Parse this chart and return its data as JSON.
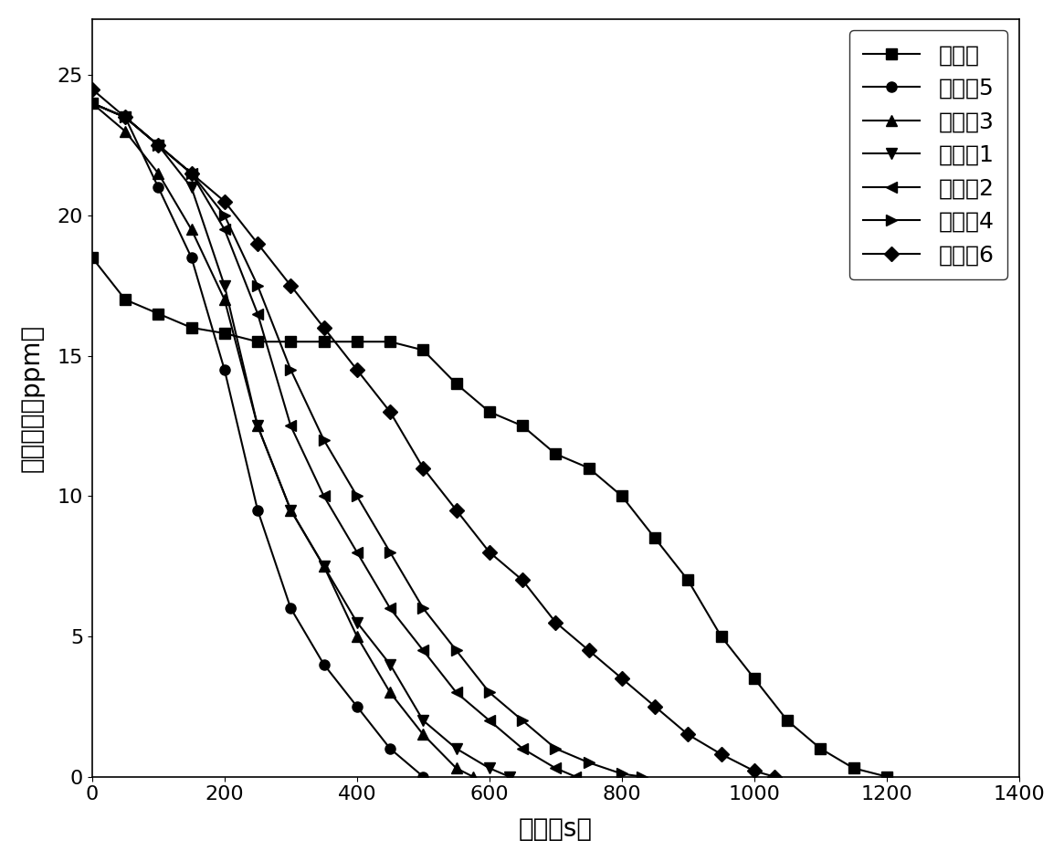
{
  "series": [
    {
      "label": "对比例",
      "marker": "s",
      "x": [
        0,
        50,
        100,
        150,
        200,
        250,
        300,
        350,
        400,
        450,
        500,
        550,
        600,
        650,
        700,
        750,
        800,
        850,
        900,
        950,
        1000,
        1050,
        1100,
        1150,
        1200
      ],
      "y": [
        18.5,
        17.0,
        16.5,
        16.0,
        15.8,
        15.5,
        15.5,
        15.5,
        15.5,
        15.5,
        15.2,
        14.0,
        13.0,
        12.5,
        11.5,
        11.0,
        10.0,
        8.5,
        7.0,
        5.0,
        3.5,
        2.0,
        1.0,
        0.3,
        0.0
      ]
    },
    {
      "label": "实施例5",
      "marker": "o",
      "x": [
        0,
        50,
        100,
        150,
        200,
        250,
        300,
        350,
        400,
        450,
        500
      ],
      "y": [
        24.0,
        23.5,
        21.0,
        18.5,
        14.5,
        9.5,
        6.0,
        4.0,
        2.5,
        1.0,
        0.0
      ]
    },
    {
      "label": "实施例3",
      "marker": "^",
      "x": [
        0,
        50,
        100,
        150,
        200,
        250,
        300,
        350,
        400,
        450,
        500,
        550,
        575
      ],
      "y": [
        24.0,
        23.0,
        21.5,
        19.5,
        17.0,
        12.5,
        9.5,
        7.5,
        5.0,
        3.0,
        1.5,
        0.3,
        0.0
      ]
    },
    {
      "label": "实施例1",
      "marker": "v",
      "x": [
        0,
        50,
        100,
        150,
        200,
        250,
        300,
        350,
        400,
        450,
        500,
        550,
        600,
        630
      ],
      "y": [
        24.0,
        23.5,
        22.5,
        21.0,
        17.5,
        12.5,
        9.5,
        7.5,
        5.5,
        4.0,
        2.0,
        1.0,
        0.3,
        0.0
      ]
    },
    {
      "label": "实施例2",
      "marker": "<",
      "x": [
        0,
        50,
        100,
        150,
        200,
        250,
        300,
        350,
        400,
        450,
        500,
        550,
        600,
        650,
        700,
        730
      ],
      "y": [
        24.0,
        23.5,
        22.5,
        21.5,
        19.5,
        16.5,
        12.5,
        10.0,
        8.0,
        6.0,
        4.5,
        3.0,
        2.0,
        1.0,
        0.3,
        0.0
      ]
    },
    {
      "label": "实施例4",
      "marker": ">",
      "x": [
        0,
        50,
        100,
        150,
        200,
        250,
        300,
        350,
        400,
        450,
        500,
        550,
        600,
        650,
        700,
        750,
        800,
        830
      ],
      "y": [
        24.0,
        23.5,
        22.5,
        21.5,
        20.0,
        17.5,
        14.5,
        12.0,
        10.0,
        8.0,
        6.0,
        4.5,
        3.0,
        2.0,
        1.0,
        0.5,
        0.1,
        0.0
      ]
    },
    {
      "label": "实施例6",
      "marker": "D",
      "x": [
        0,
        50,
        100,
        150,
        200,
        250,
        300,
        350,
        400,
        450,
        500,
        550,
        600,
        650,
        700,
        750,
        800,
        850,
        900,
        950,
        1000,
        1030
      ],
      "y": [
        24.5,
        23.5,
        22.5,
        21.5,
        20.5,
        19.0,
        17.5,
        16.0,
        14.5,
        13.0,
        11.0,
        9.5,
        8.0,
        7.0,
        5.5,
        4.5,
        3.5,
        2.5,
        1.5,
        0.8,
        0.2,
        0.0
      ]
    }
  ],
  "xlabel": "时间（s）",
  "ylabel": "臭氧浓度（ppm）",
  "xlim": [
    0,
    1400
  ],
  "ylim": [
    0,
    27
  ],
  "xticks": [
    0,
    200,
    400,
    600,
    800,
    1000,
    1200,
    1400
  ],
  "yticks": [
    0,
    5,
    10,
    15,
    20,
    25
  ],
  "color": "black",
  "markersize": 8,
  "linewidth": 1.5,
  "legend_loc": "upper right",
  "font_size": 18,
  "tick_font_size": 16,
  "label_font_size": 20
}
